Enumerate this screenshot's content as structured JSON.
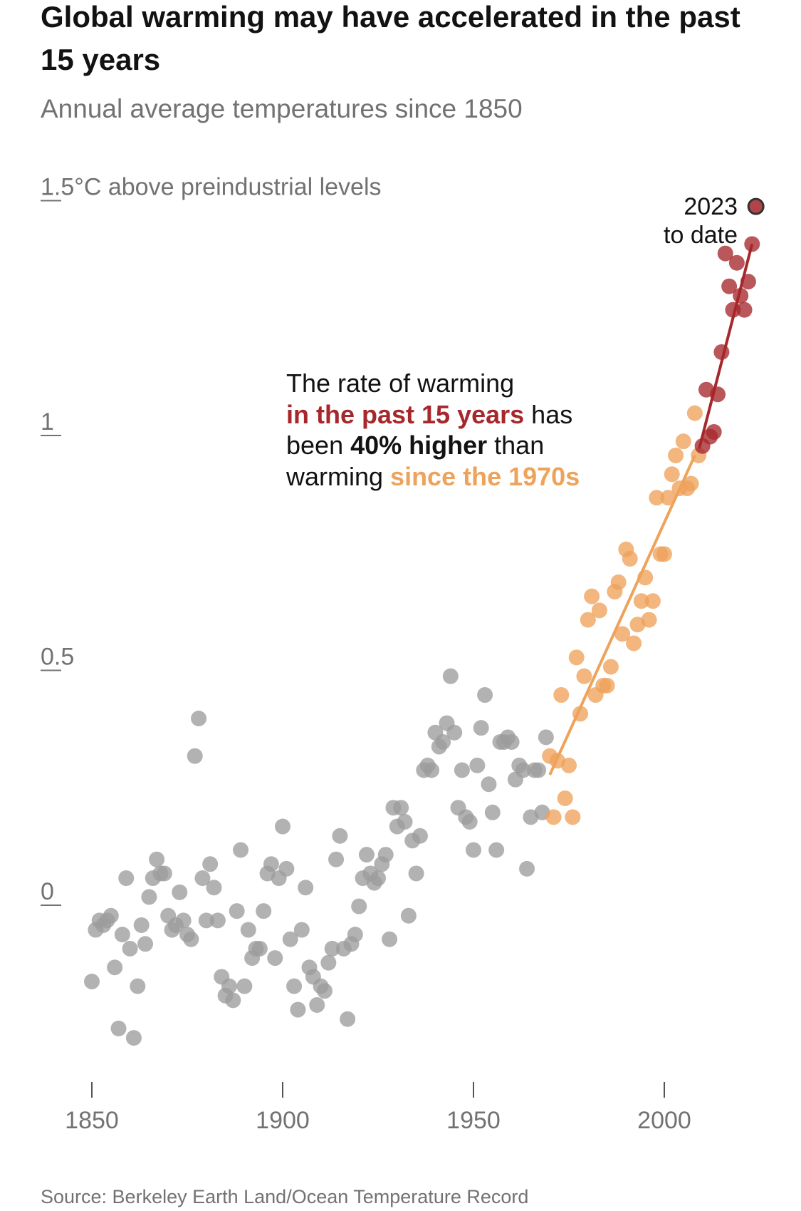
{
  "title": "Global warming may have accelerated in the past 15 years",
  "subtitle": "Annual average temperatures since 1850",
  "source": "Source: Berkeley Earth Land/Ocean Temperature Record",
  "annotation": {
    "line1": "The rate of warming",
    "highlight_red": "in the past 15 years",
    "after_red": " has",
    "before_bold": "been ",
    "bold": "40% higher",
    "after_bold": " than",
    "before_orange": "warming ",
    "highlight_orange": "since the 1970s"
  },
  "label_2023": {
    "line1": "2023",
    "line2": "to date"
  },
  "colors": {
    "gray": "#9c9c9c",
    "orange": "#eea25a",
    "red": "#a6282c",
    "red_marker": "#b04448",
    "text": "#121212",
    "muted": "#727272"
  },
  "chart_data": {
    "type": "scatter",
    "title": "Global warming may have accelerated in the past 15 years",
    "subtitle": "Annual average temperatures since 1850",
    "ylabel": "1.5°C above preindustrial levels",
    "xlim": [
      1850,
      2023
    ],
    "ylim": [
      -0.35,
      1.5
    ],
    "x_ticks": [
      1850,
      1900,
      1950,
      2000
    ],
    "y_ticks": [
      {
        "value": 0,
        "label": "0"
      },
      {
        "value": 0.5,
        "label": "0.5"
      },
      {
        "value": 1,
        "label": "1"
      },
      {
        "value": 1.5,
        "label": "1.5°C above preindustrial levels"
      }
    ],
    "grid": false,
    "series": [
      {
        "color": "#9c9c9c",
        "points": [
          [
            1850,
            -0.17
          ],
          [
            1851,
            -0.06
          ],
          [
            1852,
            -0.04
          ],
          [
            1853,
            -0.05
          ],
          [
            1854,
            -0.04
          ],
          [
            1855,
            -0.03
          ],
          [
            1856,
            -0.14
          ],
          [
            1857,
            -0.27
          ],
          [
            1858,
            -0.07
          ],
          [
            1859,
            0.05
          ],
          [
            1860,
            -0.1
          ],
          [
            1861,
            -0.29
          ],
          [
            1862,
            -0.18
          ],
          [
            1863,
            -0.05
          ],
          [
            1864,
            -0.09
          ],
          [
            1865,
            0.01
          ],
          [
            1866,
            0.05
          ],
          [
            1867,
            0.09
          ],
          [
            1868,
            0.06
          ],
          [
            1869,
            0.06
          ],
          [
            1870,
            -0.03
          ],
          [
            1871,
            -0.06
          ],
          [
            1872,
            -0.05
          ],
          [
            1873,
            0.02
          ],
          [
            1874,
            -0.04
          ],
          [
            1875,
            -0.07
          ],
          [
            1876,
            -0.08
          ],
          [
            1877,
            0.31
          ],
          [
            1878,
            0.39
          ],
          [
            1879,
            0.05
          ],
          [
            1880,
            -0.04
          ],
          [
            1881,
            0.08
          ],
          [
            1882,
            0.03
          ],
          [
            1883,
            -0.04
          ],
          [
            1884,
            -0.16
          ],
          [
            1885,
            -0.2
          ],
          [
            1886,
            -0.18
          ],
          [
            1887,
            -0.21
          ],
          [
            1888,
            -0.02
          ],
          [
            1889,
            0.11
          ],
          [
            1890,
            -0.18
          ],
          [
            1891,
            -0.06
          ],
          [
            1892,
            -0.12
          ],
          [
            1893,
            -0.1
          ],
          [
            1894,
            -0.1
          ],
          [
            1895,
            -0.02
          ],
          [
            1896,
            0.06
          ],
          [
            1897,
            0.08
          ],
          [
            1898,
            -0.12
          ],
          [
            1899,
            0.05
          ],
          [
            1900,
            0.16
          ],
          [
            1901,
            0.07
          ],
          [
            1902,
            -0.08
          ],
          [
            1903,
            -0.18
          ],
          [
            1904,
            -0.23
          ],
          [
            1905,
            -0.06
          ],
          [
            1906,
            0.03
          ],
          [
            1907,
            -0.14
          ],
          [
            1908,
            -0.16
          ],
          [
            1909,
            -0.22
          ],
          [
            1910,
            -0.18
          ],
          [
            1911,
            -0.19
          ],
          [
            1912,
            -0.13
          ],
          [
            1913,
            -0.1
          ],
          [
            1914,
            0.09
          ],
          [
            1915,
            0.14
          ],
          [
            1916,
            -0.1
          ],
          [
            1917,
            -0.25
          ],
          [
            1918,
            -0.09
          ],
          [
            1919,
            -0.07
          ],
          [
            1920,
            -0.01
          ],
          [
            1921,
            0.05
          ],
          [
            1922,
            0.1
          ],
          [
            1923,
            0.06
          ],
          [
            1924,
            0.04
          ],
          [
            1925,
            0.05
          ],
          [
            1926,
            0.08
          ],
          [
            1927,
            0.1
          ],
          [
            1928,
            -0.08
          ],
          [
            1929,
            0.2
          ],
          [
            1930,
            0.16
          ],
          [
            1931,
            0.2
          ],
          [
            1932,
            0.17
          ],
          [
            1933,
            -0.03
          ],
          [
            1934,
            0.13
          ],
          [
            1935,
            0.06
          ],
          [
            1936,
            0.14
          ],
          [
            1937,
            0.28
          ],
          [
            1938,
            0.29
          ],
          [
            1939,
            0.28
          ],
          [
            1940,
            0.36
          ],
          [
            1941,
            0.33
          ],
          [
            1942,
            0.34
          ],
          [
            1943,
            0.38
          ],
          [
            1944,
            0.48
          ],
          [
            1945,
            0.36
          ],
          [
            1946,
            0.2
          ],
          [
            1947,
            0.28
          ],
          [
            1948,
            0.18
          ],
          [
            1949,
            0.17
          ],
          [
            1950,
            0.11
          ],
          [
            1951,
            0.29
          ],
          [
            1952,
            0.37
          ],
          [
            1953,
            0.44
          ],
          [
            1954,
            0.25
          ],
          [
            1955,
            0.19
          ],
          [
            1956,
            0.11
          ],
          [
            1957,
            0.34
          ],
          [
            1958,
            0.34
          ],
          [
            1959,
            0.35
          ],
          [
            1960,
            0.34
          ],
          [
            1961,
            0.26
          ],
          [
            1962,
            0.29
          ],
          [
            1963,
            0.28
          ],
          [
            1964,
            0.07
          ],
          [
            1965,
            0.18
          ],
          [
            1966,
            0.28
          ],
          [
            1967,
            0.28
          ],
          [
            1968,
            0.19
          ],
          [
            1969,
            0.35
          ]
        ]
      },
      {
        "color": "#eea25a",
        "points": [
          [
            1970,
            0.31
          ],
          [
            1971,
            0.18
          ],
          [
            1972,
            0.3
          ],
          [
            1973,
            0.44
          ],
          [
            1974,
            0.22
          ],
          [
            1975,
            0.29
          ],
          [
            1976,
            0.18
          ],
          [
            1977,
            0.52
          ],
          [
            1978,
            0.4
          ],
          [
            1979,
            0.48
          ],
          [
            1980,
            0.6
          ],
          [
            1981,
            0.65
          ],
          [
            1982,
            0.44
          ],
          [
            1983,
            0.62
          ],
          [
            1984,
            0.46
          ],
          [
            1985,
            0.46
          ],
          [
            1986,
            0.5
          ],
          [
            1987,
            0.66
          ],
          [
            1988,
            0.68
          ],
          [
            1989,
            0.57
          ],
          [
            1990,
            0.75
          ],
          [
            1991,
            0.73
          ],
          [
            1992,
            0.55
          ],
          [
            1993,
            0.59
          ],
          [
            1994,
            0.64
          ],
          [
            1995,
            0.69
          ],
          [
            1996,
            0.6
          ],
          [
            1997,
            0.64
          ],
          [
            1998,
            0.86
          ],
          [
            1999,
            0.74
          ],
          [
            2000,
            0.74
          ],
          [
            2001,
            0.86
          ],
          [
            2002,
            0.91
          ],
          [
            2003,
            0.95
          ],
          [
            2004,
            0.88
          ],
          [
            2005,
            0.98
          ],
          [
            2006,
            0.88
          ],
          [
            2007,
            0.89
          ],
          [
            2008,
            1.04
          ],
          [
            2009,
            0.95
          ]
        ]
      },
      {
        "color": "#a6282c",
        "points": [
          [
            2010,
            0.97
          ],
          [
            2011,
            1.09
          ],
          [
            2012,
            0.99
          ],
          [
            2013,
            1.0
          ],
          [
            2014,
            1.08
          ],
          [
            2015,
            1.17
          ],
          [
            2016,
            1.38
          ],
          [
            2017,
            1.31
          ],
          [
            2018,
            1.26
          ],
          [
            2019,
            1.36
          ],
          [
            2020,
            1.29
          ],
          [
            2021,
            1.26
          ],
          [
            2022,
            1.32
          ],
          [
            2023,
            1.4
          ]
        ]
      }
    ],
    "highlight_point": {
      "x": 2024,
      "y": 1.48,
      "label": "2023 to date"
    },
    "trend_lines": [
      {
        "color": "#eea25a",
        "from": [
          1970,
          0.27
        ],
        "to": [
          2008,
          0.95
        ]
      },
      {
        "color": "#a6282c",
        "from": [
          2009,
          0.96
        ],
        "to": [
          2023,
          1.4
        ]
      }
    ]
  }
}
